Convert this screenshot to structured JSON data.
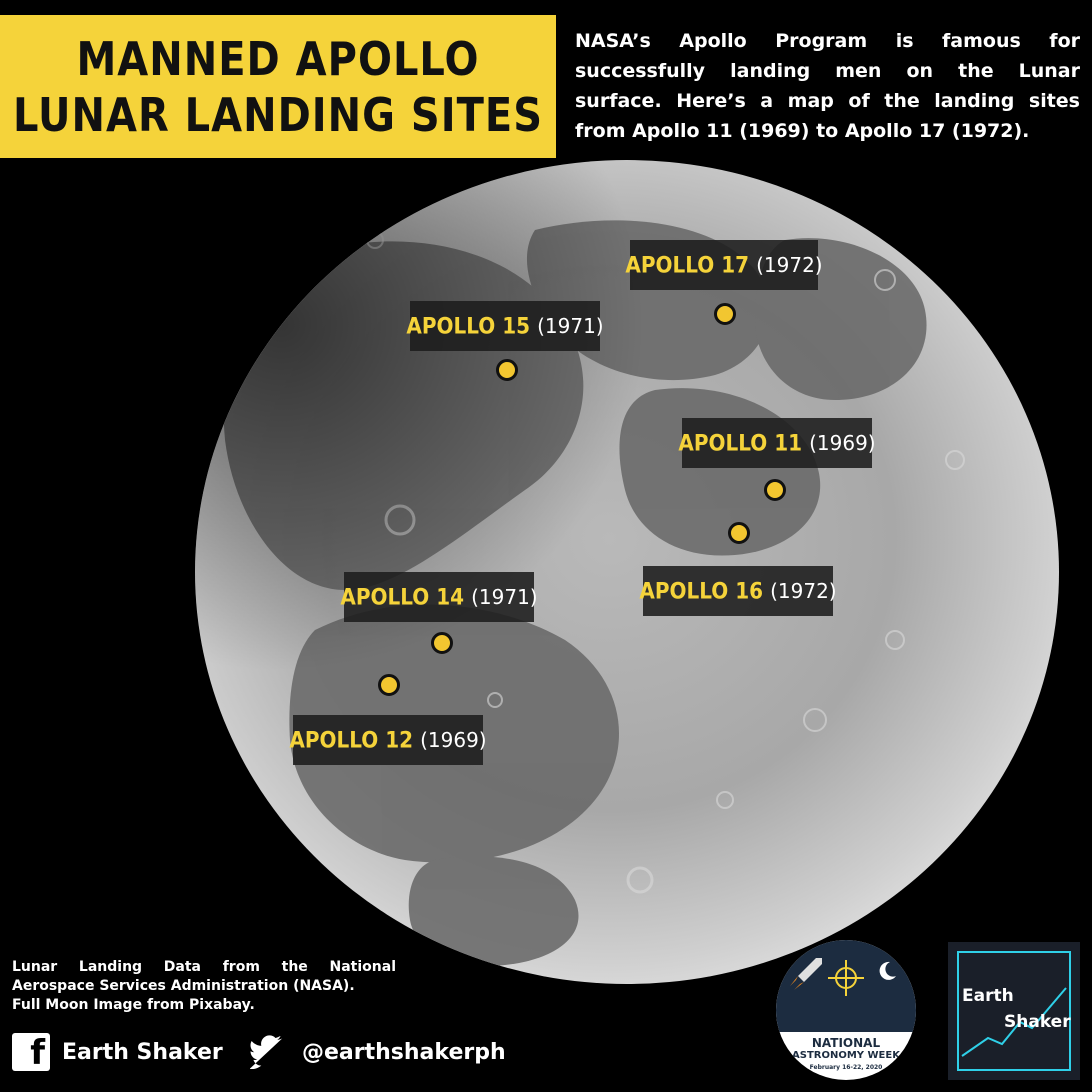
{
  "title": {
    "line1": "MANNED APOLLO",
    "line2": "LUNAR LANDING SITES"
  },
  "intro": "NASA’s Apollo Program is famous for successfully landing men on the Lunar surface. Here’s a map of the landing sites from Apollo 11 (1969) to Apollo 17 (1972).",
  "sites": [
    {
      "name": "APOLLO 17",
      "year": "(1972)"
    },
    {
      "name": "APOLLO 15",
      "year": "(1971)"
    },
    {
      "name": "APOLLO 11",
      "year": "(1969)"
    },
    {
      "name": "APOLLO 16",
      "year": "(1972)"
    },
    {
      "name": "APOLLO 14",
      "year": "(1971)"
    },
    {
      "name": "APOLLO 12",
      "year": "(1969)"
    }
  ],
  "credits": {
    "line1": "Lunar Landing Data from the National Aerospace Services Administration (NASA).",
    "line2": "Full Moon Image from Pixabay."
  },
  "social": {
    "facebook": "Earth Shaker",
    "twitter": "@earthshakerph"
  },
  "badge": {
    "line1": "NATIONAL",
    "line2": "ASTRONOMY WEEK",
    "line3": "February 16-22, 2020"
  },
  "logo": {
    "word1": "Earth",
    "word2": "Shaker"
  },
  "colors": {
    "accent": "#f5d33a",
    "marker": "#f2c630",
    "background": "#000000",
    "label_bg": "#1c1c1c"
  },
  "icons": [
    "facebook-icon",
    "twitter-icon",
    "site-marker-icon"
  ]
}
